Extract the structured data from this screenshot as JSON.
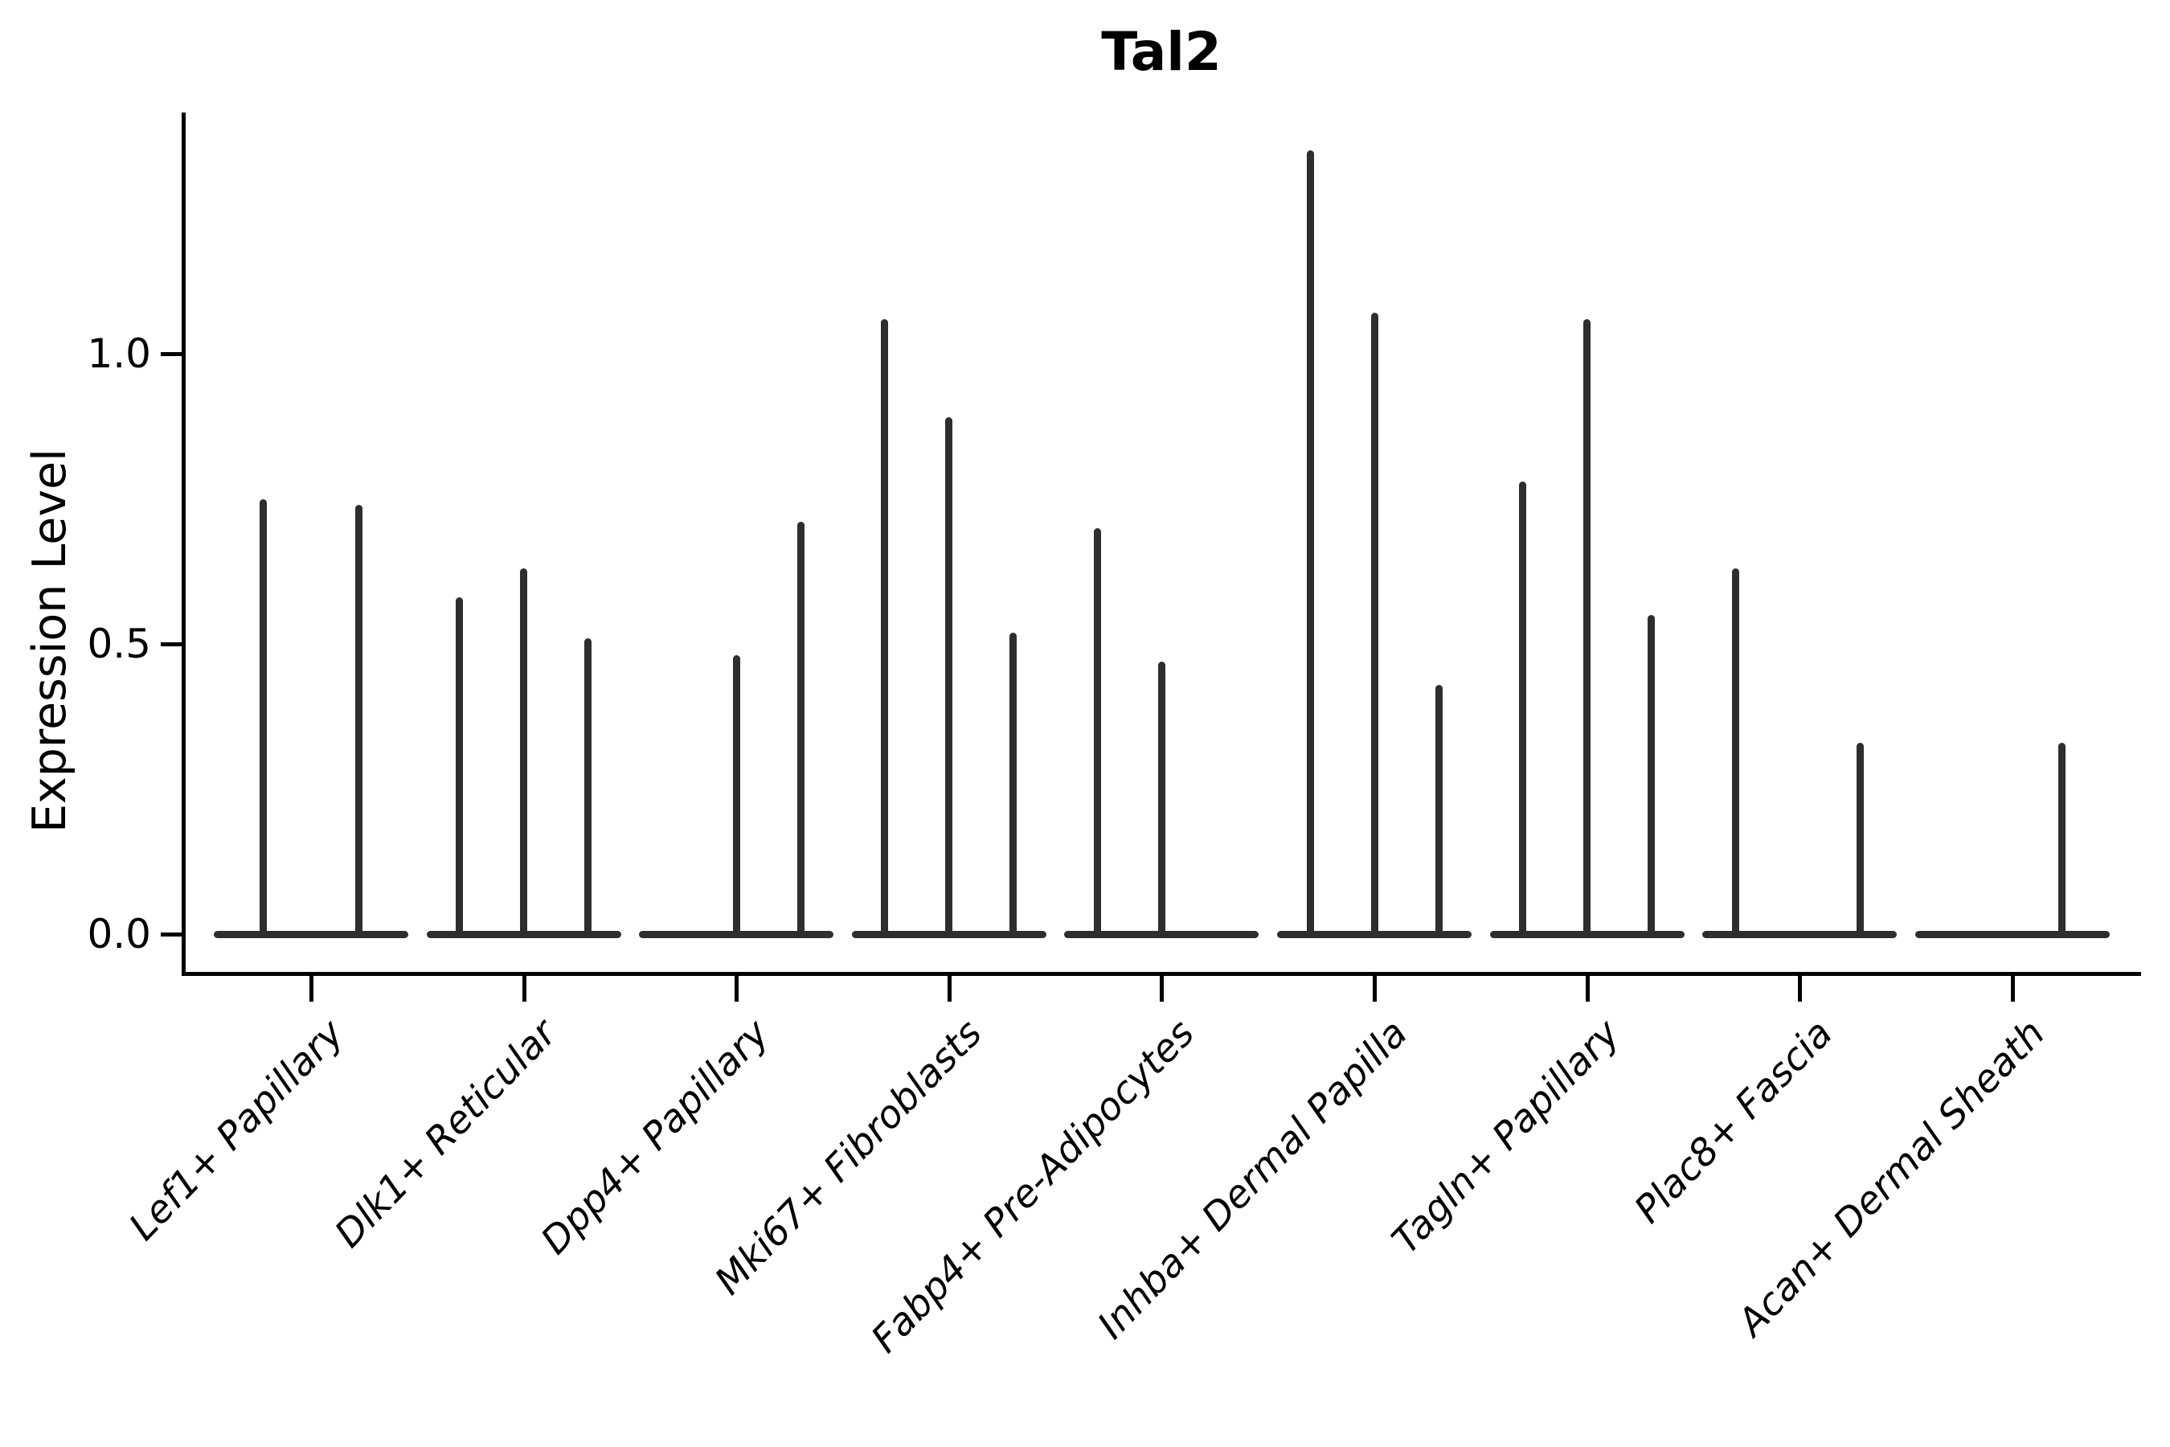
{
  "figure": {
    "title": "Tal2",
    "background": "#ffffff",
    "violin_color": "#2e2e2e",
    "axis_color": "#000000",
    "text_color": "#000000"
  },
  "chart_data": {
    "type": "violin",
    "title": "Tal2",
    "xlabel": "",
    "ylabel": "Expression Level",
    "grid": false,
    "legend_position": "none",
    "ylim": [
      -0.07,
      1.42
    ],
    "yticks": [
      "0.0",
      "0.5",
      "1.0"
    ],
    "ytick_values": [
      0.0,
      0.5,
      1.0
    ],
    "categories": [
      "Lef1+ Papillary",
      "Dlk1+ Reticular",
      "Dpp4+ Papillary",
      "Mki67+ Fibroblasts",
      "Fabp4+ Pre-Adipocytes",
      "Inhba+ Dermal Papilla",
      "Tagln+ Papillary",
      "Plac8+ Fascia",
      "Acan+ Dermal Sheath"
    ],
    "series": [
      {
        "category": "Lef1+ Papillary",
        "spikes": [
          {
            "offset": -60,
            "value": 0.75
          },
          {
            "offset": 59,
            "value": 0.74
          }
        ]
      },
      {
        "category": "Dlk1+ Reticular",
        "spikes": [
          {
            "offset": -80,
            "value": 0.58
          },
          {
            "offset": 0,
            "value": 0.63
          },
          {
            "offset": 80,
            "value": 0.51
          }
        ]
      },
      {
        "category": "Dpp4+ Papillary",
        "spikes": [
          {
            "offset": 0,
            "value": 0.48
          },
          {
            "offset": 80,
            "value": 0.71
          }
        ]
      },
      {
        "category": "Mki67+ Fibroblasts",
        "spikes": [
          {
            "offset": -80,
            "value": 1.06
          },
          {
            "offset": 0,
            "value": 0.89
          },
          {
            "offset": 80,
            "value": 0.52
          }
        ]
      },
      {
        "category": "Fabp4+ Pre-Adipocytes",
        "spikes": [
          {
            "offset": -80,
            "value": 0.7
          },
          {
            "offset": 0,
            "value": 0.47
          }
        ]
      },
      {
        "category": "Inhba+ Dermal Papilla",
        "spikes": [
          {
            "offset": -80,
            "value": 1.35
          },
          {
            "offset": 0,
            "value": 1.07
          },
          {
            "offset": 80,
            "value": 0.43
          }
        ]
      },
      {
        "category": "Tagln+ Papillary",
        "spikes": [
          {
            "offset": -80,
            "value": 0.78
          },
          {
            "offset": 0,
            "value": 1.06
          },
          {
            "offset": 80,
            "value": 0.55
          }
        ]
      },
      {
        "category": "Plac8+ Fascia",
        "spikes": [
          {
            "offset": -80,
            "value": 0.63
          },
          {
            "offset": 75,
            "value": 0.33
          }
        ]
      },
      {
        "category": "Acan+ Dermal Sheath",
        "spikes": [
          {
            "offset": 62,
            "value": 0.33
          }
        ]
      }
    ],
    "baseline_value": 0.0
  }
}
